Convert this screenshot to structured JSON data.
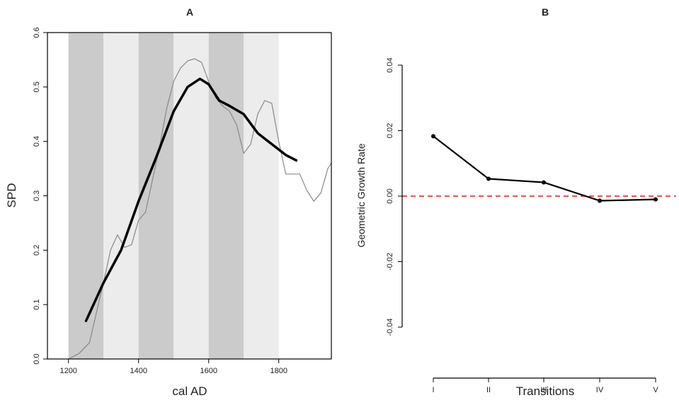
{
  "chart_data": [
    {
      "type": "line",
      "title": "A",
      "xlabel": "cal AD",
      "ylabel": "SPD",
      "xlim": [
        1140,
        1950
      ],
      "ylim": [
        0,
        0.6
      ],
      "x_ticks": [
        1200,
        1400,
        1600,
        1800
      ],
      "y_ticks": [
        0.0,
        0.1,
        0.2,
        0.3,
        0.4,
        0.5,
        0.6
      ],
      "x_tick_labels": [
        "1200",
        "1400",
        "1600",
        "1800"
      ],
      "y_tick_labels": [
        "0.0",
        "0.1",
        "0.2",
        "0.3",
        "0.4",
        "0.5",
        "0.6"
      ],
      "bands": [
        {
          "start": 1200,
          "end": 1300,
          "color": "#cbcbcb"
        },
        {
          "start": 1300,
          "end": 1400,
          "color": "#ececec"
        },
        {
          "start": 1400,
          "end": 1500,
          "color": "#cbcbcb"
        },
        {
          "start": 1500,
          "end": 1600,
          "color": "#ececec"
        },
        {
          "start": 1600,
          "end": 1700,
          "color": "#cbcbcb"
        },
        {
          "start": 1700,
          "end": 1800,
          "color": "#ececec"
        }
      ],
      "series": [
        {
          "style": "thin-grey",
          "color": "#888888",
          "x": [
            1200,
            1230,
            1260,
            1285,
            1300,
            1320,
            1340,
            1360,
            1380,
            1400,
            1420,
            1440,
            1460,
            1480,
            1500,
            1520,
            1540,
            1560,
            1580,
            1600,
            1620,
            1640,
            1660,
            1680,
            1700,
            1720,
            1740,
            1760,
            1780,
            1800,
            1820,
            1840,
            1860,
            1880,
            1900,
            1920,
            1940,
            1950
          ],
          "y": [
            0.0,
            0.01,
            0.03,
            0.1,
            0.14,
            0.2,
            0.228,
            0.205,
            0.21,
            0.255,
            0.27,
            0.33,
            0.39,
            0.46,
            0.51,
            0.535,
            0.548,
            0.552,
            0.545,
            0.51,
            0.48,
            0.465,
            0.455,
            0.43,
            0.378,
            0.395,
            0.45,
            0.475,
            0.47,
            0.4,
            0.34,
            0.34,
            0.34,
            0.31,
            0.29,
            0.305,
            0.35,
            0.36
          ]
        },
        {
          "style": "thick-black",
          "color": "#000000",
          "x": [
            1250,
            1300,
            1350,
            1400,
            1450,
            1500,
            1540,
            1575,
            1600,
            1630,
            1660,
            1700,
            1740,
            1780,
            1820,
            1850
          ],
          "y": [
            0.07,
            0.14,
            0.2,
            0.29,
            0.37,
            0.455,
            0.5,
            0.515,
            0.505,
            0.475,
            0.465,
            0.45,
            0.415,
            0.395,
            0.375,
            0.365
          ]
        }
      ]
    },
    {
      "type": "line",
      "title": "B",
      "xlabel": "Transitions",
      "ylabel": "Geometric Growth Rate",
      "categories": [
        "I",
        "II",
        "III",
        "IV",
        "V"
      ],
      "ylim": [
        -0.04,
        0.04
      ],
      "y_ticks": [
        -0.04,
        -0.02,
        0.0,
        0.02,
        0.04
      ],
      "y_tick_labels": [
        "-0.04",
        "-0.02",
        "0.00",
        "0.02",
        "0.04"
      ],
      "series": [
        {
          "color": "#000000",
          "values": [
            0.0183,
            0.0053,
            0.0042,
            -0.0014,
            -0.001
          ]
        }
      ],
      "reference_line": {
        "y": 0.0,
        "color": "#e01b1b",
        "style": "dashed"
      },
      "grid": false
    }
  ]
}
